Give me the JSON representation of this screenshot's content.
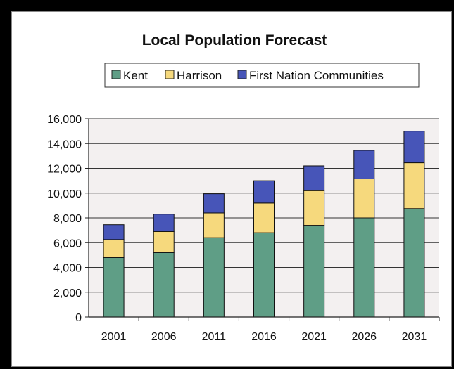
{
  "chart_data": {
    "type": "bar",
    "stacked": true,
    "title": "Local Population Forecast",
    "xlabel": "",
    "ylabel": "",
    "categories": [
      "2001",
      "2006",
      "2011",
      "2016",
      "2021",
      "2026",
      "2031"
    ],
    "series": [
      {
        "name": "Kent",
        "color": "#5f9e86",
        "values": [
          4800,
          5200,
          6400,
          6800,
          7400,
          8000,
          8750
        ]
      },
      {
        "name": "Harrison",
        "color": "#f6d97d",
        "values": [
          1450,
          1700,
          2000,
          2400,
          2800,
          3150,
          3700
        ]
      },
      {
        "name": "First Nation Communities",
        "color": "#4755b8",
        "values": [
          1200,
          1400,
          1550,
          1800,
          2000,
          2300,
          2550
        ]
      }
    ],
    "ylim": [
      0,
      16000
    ],
    "yticks": [
      "0",
      "2,000",
      "4,000",
      "6,000",
      "8,000",
      "10,000",
      "12,000",
      "14,000",
      "16,000"
    ],
    "grid": true,
    "legend_position": "top"
  },
  "colors": {
    "plot_background": "#f3f0f0",
    "gridline": "#333333",
    "frame_border": "#000000"
  }
}
